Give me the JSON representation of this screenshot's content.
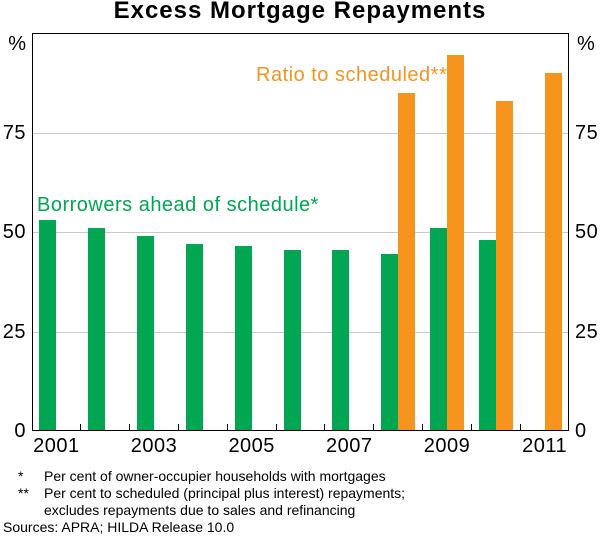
{
  "title": "Excess Mortgage Repayments",
  "axis": {
    "unit": "%"
  },
  "chart_data": {
    "type": "bar",
    "categories": [
      "2001",
      "2002",
      "2003",
      "2004",
      "2005",
      "2006",
      "2007",
      "2008",
      "2009",
      "2010",
      "2011"
    ],
    "series": [
      {
        "name": "Borrowers ahead of schedule*",
        "color": "#00a651",
        "values": [
          53,
          51,
          49,
          47,
          46.5,
          45.5,
          45.5,
          44.5,
          51,
          48,
          null
        ]
      },
      {
        "name": "Ratio to scheduled**",
        "color": "#f7941e",
        "values": [
          null,
          null,
          null,
          null,
          null,
          null,
          null,
          85,
          94.5,
          83,
          90
        ]
      }
    ],
    "ylim": [
      0,
      100
    ],
    "yticks": [
      0,
      25,
      50,
      75
    ],
    "y_unit": "%",
    "xtick_labels": [
      "2001",
      "2003",
      "2005",
      "2007",
      "2009",
      "2011"
    ],
    "grid": true,
    "legend_position": "inside-annotations"
  },
  "annotations": [
    {
      "text": "Borrowers ahead of schedule*",
      "color": "#00a651"
    },
    {
      "text": "Ratio to scheduled**",
      "color": "#f7941e"
    }
  ],
  "footnotes": [
    {
      "marker": "*",
      "lines": [
        "Per cent of owner-occupier households with mortgages"
      ]
    },
    {
      "marker": "**",
      "lines": [
        "Per cent to scheduled (principal plus interest) repayments;",
        "excludes repayments due to sales and refinancing"
      ]
    }
  ],
  "sources": "Sources: APRA; HILDA Release 10.0"
}
